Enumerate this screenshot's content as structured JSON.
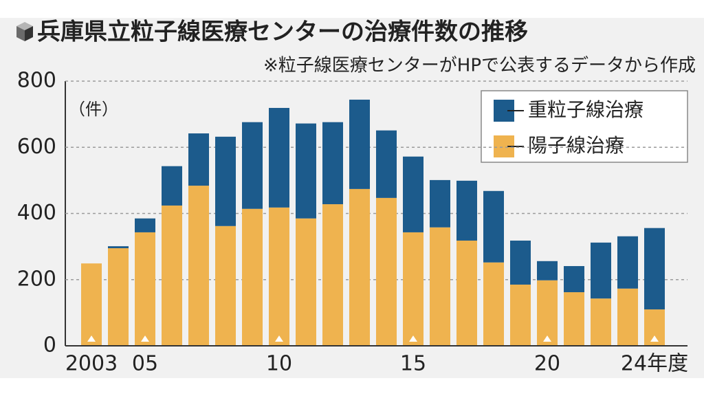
{
  "chart_data": {
    "type": "stacked_bar",
    "title": "兵庫県立粒子線医療センターの治療件数の推移",
    "subtitle": "※粒子線医療センターがHPで公表するデータから作成",
    "y_unit": "（件）",
    "categories": [
      "2003",
      null,
      "05",
      null,
      null,
      null,
      null,
      "10",
      null,
      null,
      null,
      null,
      "15",
      null,
      null,
      null,
      null,
      "20",
      null,
      null,
      null,
      "24年度"
    ],
    "series": [
      {
        "name": "重粒子線治療",
        "color": "#1c5b8c",
        "values": [
          0,
          6,
          42,
          119,
          158,
          270,
          262,
          301,
          287,
          248,
          270,
          204,
          229,
          143,
          181,
          216,
          133,
          58,
          79,
          169,
          158,
          246
        ]
      },
      {
        "name": "陽子線治療",
        "color": "#efb34f",
        "values": [
          249,
          295,
          343,
          424,
          484,
          362,
          414,
          418,
          385,
          428,
          474,
          447,
          343,
          358,
          318,
          252,
          185,
          198,
          162,
          143,
          173,
          110
        ]
      }
    ],
    "ylim": [
      0,
      800
    ],
    "yticks": [
      0,
      200,
      400,
      600,
      800
    ],
    "grid": true,
    "legend": "top-right"
  }
}
